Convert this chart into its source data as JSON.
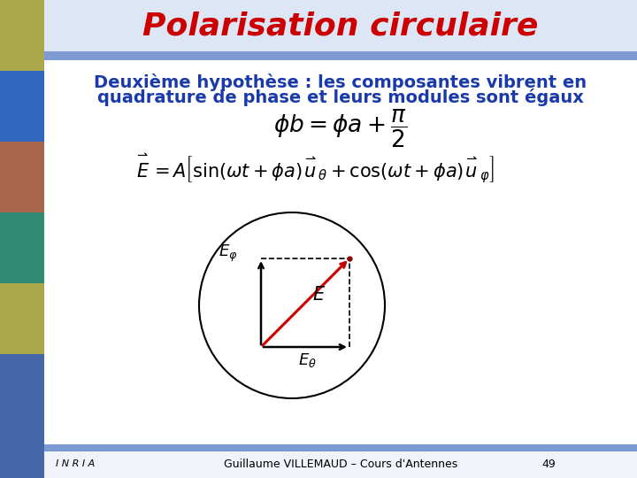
{
  "title": "Polarisation circulaire",
  "title_color": "#CC0000",
  "title_fontsize": 26,
  "subtitle_line1": "Deuxième hypothèse : les composantes vibrent en",
  "subtitle_line2": "quadrature de phase et leurs modules sont égaux",
  "subtitle_color": "#1a3aaa",
  "subtitle_fontsize": 14,
  "slide_bg": "#f0f4fa",
  "white_bg": "#ffffff",
  "blue_bar_color": "#6688cc",
  "left_bar_color": "#4466aa",
  "formula_color": "#000000",
  "circle_color": "#000000",
  "arrow_color": "#CC0000",
  "footer_text": "Guillaume VILLEMAUD – Cours d'Antennes",
  "page_number": "49",
  "footer_color": "#000000",
  "footer_fontsize": 9,
  "inria_text": "I N R I A"
}
